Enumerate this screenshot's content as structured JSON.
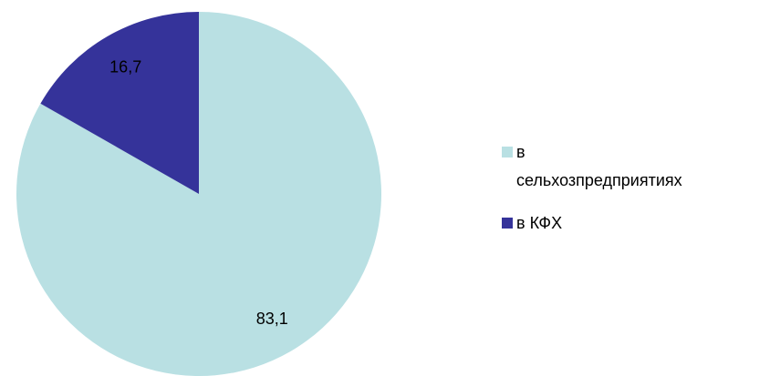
{
  "chart_data": {
    "type": "pie",
    "categories": [
      "в сельхозпредприятиях",
      "в КФХ"
    ],
    "values": [
      83.1,
      16.7
    ],
    "value_labels": [
      "83,1",
      "16,7"
    ],
    "colors": [
      "#b9e0e3",
      "#35339a"
    ],
    "legend": "right"
  }
}
